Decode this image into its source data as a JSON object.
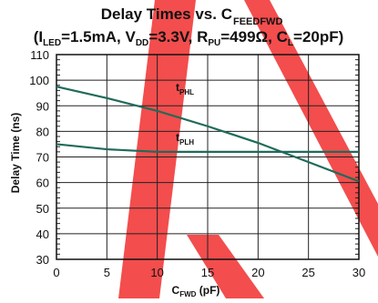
{
  "chart_data": {
    "type": "line",
    "title": {
      "main": "Delay Times vs. C",
      "main_sub": "FEEDFWD",
      "conditions": [
        {
          "t": "(I",
          "s": ""
        },
        {
          "t": "",
          "s": "LED"
        },
        {
          "t": "=1.5mA, V",
          "s": ""
        },
        {
          "t": "",
          "s": "DD"
        },
        {
          "t": "=3.3V, R",
          "s": ""
        },
        {
          "t": "",
          "s": "PU"
        },
        {
          "t": "=499Ω, C",
          "s": ""
        },
        {
          "t": "",
          "s": "L"
        },
        {
          "t": "=20pF)",
          "s": ""
        }
      ]
    },
    "xlabel": {
      "main": "C",
      "sub": "FWD",
      "unit": " (pF)"
    },
    "ylabel": "Delay Time (ns)",
    "xlim": [
      0,
      30
    ],
    "ylim": [
      30,
      110
    ],
    "xticks": [
      0,
      5,
      10,
      15,
      20,
      25,
      30
    ],
    "yticks": [
      30,
      40,
      50,
      60,
      70,
      80,
      90,
      100,
      110
    ],
    "grid": true,
    "series": [
      {
        "name": "tPHL",
        "label_main": "t",
        "label_sub": "PHL",
        "color": "#1f6b5a",
        "x": [
          0,
          5,
          10,
          15,
          20,
          25,
          30
        ],
        "y": [
          97.5,
          93,
          88,
          82,
          75.5,
          68,
          60.5
        ]
      },
      {
        "name": "tPLH",
        "label_main": "t",
        "label_sub": "PLH",
        "color": "#1f6b5a",
        "x": [
          0,
          5,
          10,
          15,
          20,
          25,
          30
        ],
        "y": [
          75,
          73,
          72,
          72,
          72,
          72,
          72
        ]
      }
    ]
  }
}
